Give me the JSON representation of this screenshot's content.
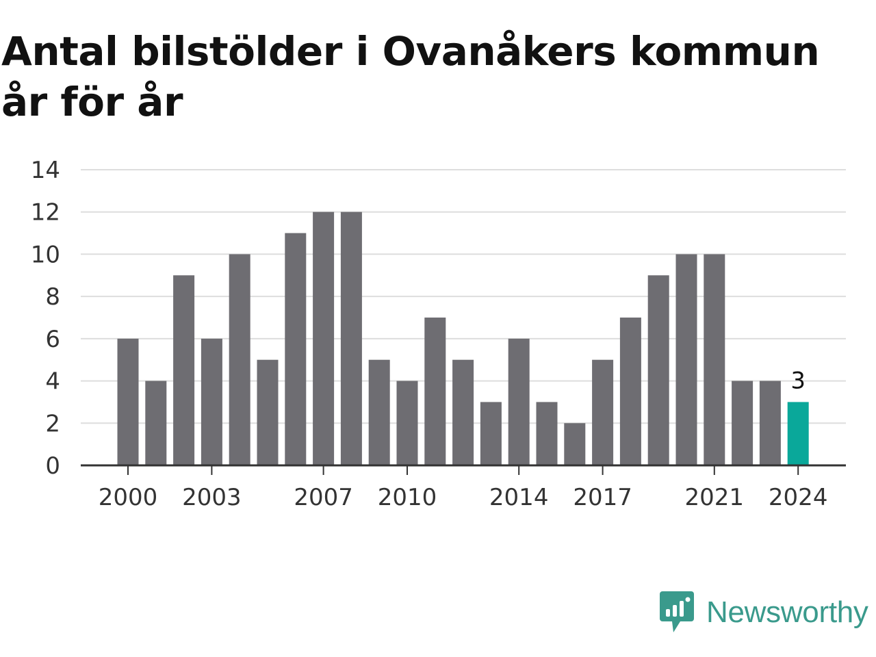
{
  "title": "Antal bilstölder i Ovanåkers kommun år för år",
  "brand": {
    "name": "Newsworthy",
    "logo_icon": "newsworthy-logo-icon",
    "color": "#3a9a8c"
  },
  "colors": {
    "bar": "#6e6d72",
    "highlight": "#0aa89a",
    "grid": "#dddddd",
    "axis": "#333333"
  },
  "chart_data": {
    "type": "bar",
    "title": "Antal bilstölder i Ovanåkers kommun år för år",
    "xlabel": "",
    "ylabel": "",
    "categories": [
      "2000",
      "2001",
      "2002",
      "2003",
      "2004",
      "2005",
      "2006",
      "2007",
      "2008",
      "2009",
      "2010",
      "2011",
      "2012",
      "2013",
      "2014",
      "2015",
      "2016",
      "2017",
      "2018",
      "2019",
      "2020",
      "2021",
      "2022",
      "2023",
      "2024"
    ],
    "values": [
      6,
      4,
      9,
      6,
      10,
      5,
      11,
      12,
      12,
      5,
      4,
      7,
      5,
      3,
      6,
      3,
      2,
      5,
      7,
      9,
      10,
      10,
      4,
      4,
      3
    ],
    "ylim": [
      0,
      14
    ],
    "yticks": [
      0,
      2,
      4,
      6,
      8,
      10,
      12,
      14
    ],
    "xtick_labels": [
      "2000",
      "2003",
      "2007",
      "2010",
      "2014",
      "2017",
      "2021",
      "2024"
    ],
    "highlight_category": "2024",
    "data_labels": [
      {
        "category": "2024",
        "text": "3"
      }
    ],
    "grid": true,
    "legend": "none"
  }
}
